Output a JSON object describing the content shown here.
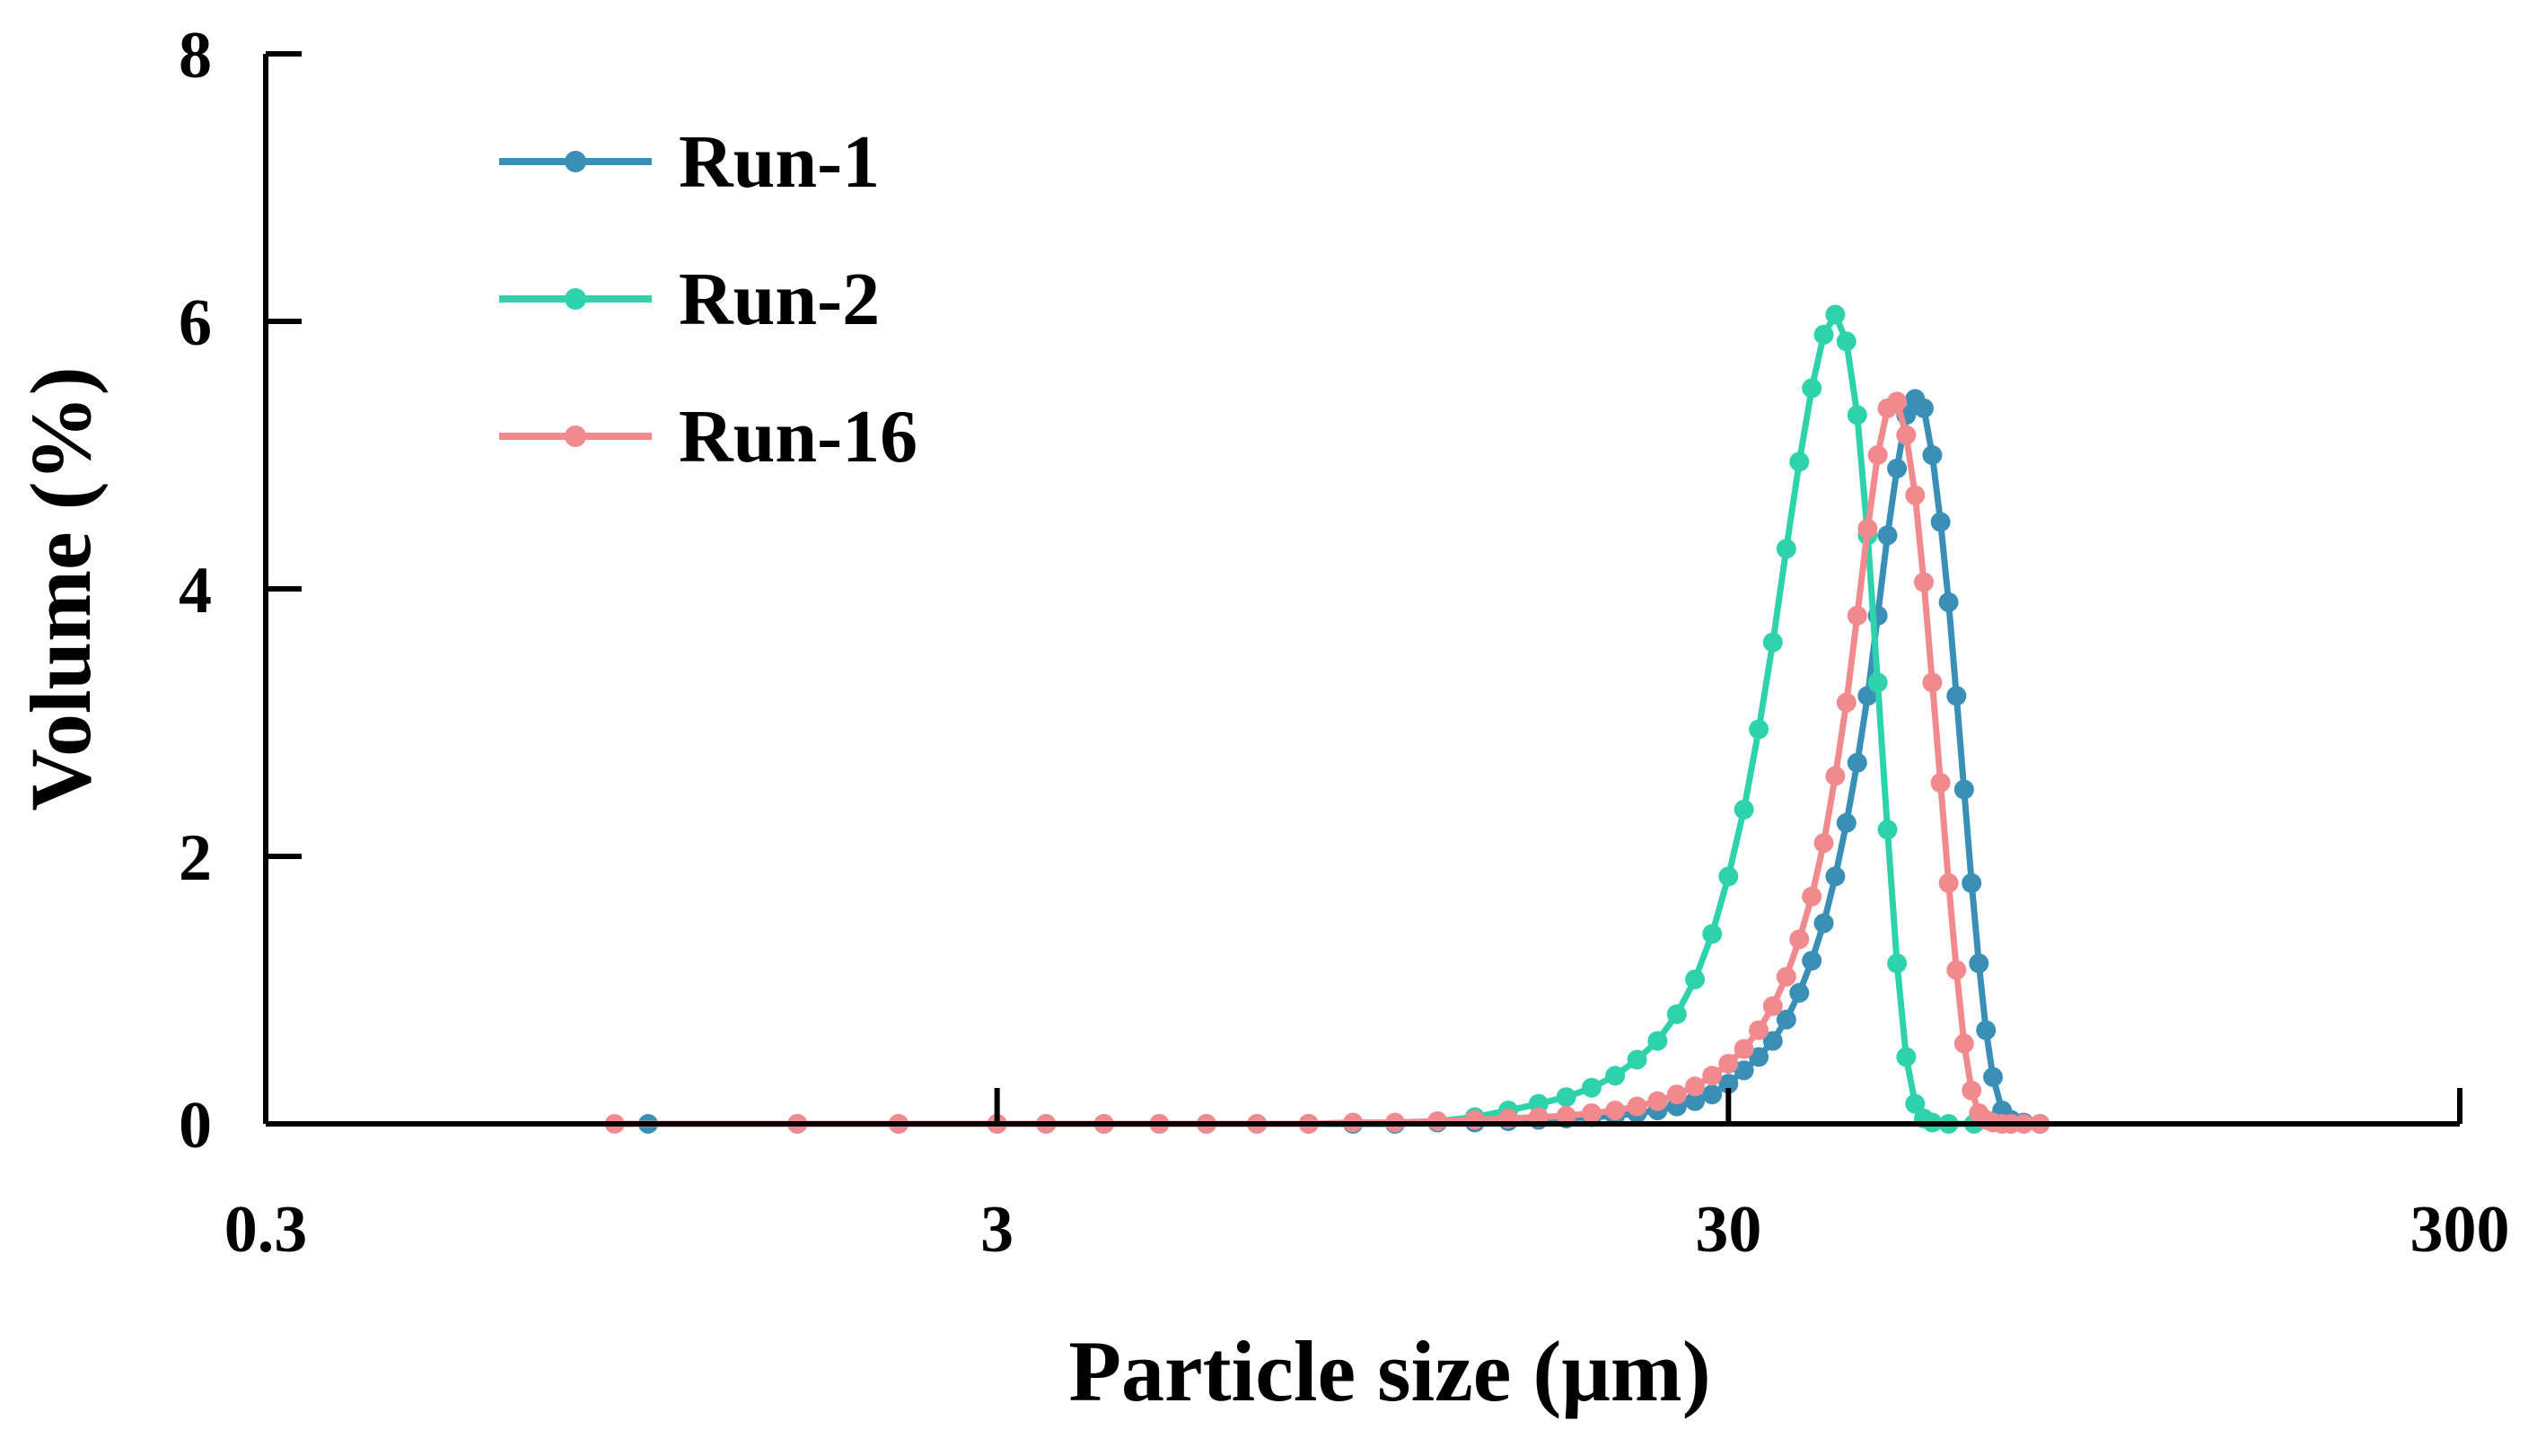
{
  "chart_data": {
    "type": "line",
    "title": "",
    "xlabel": "Particle size (μm)",
    "ylabel": "Volume (%)",
    "x_scale": "log",
    "xlim": [
      0.3,
      300
    ],
    "ylim": [
      0,
      8
    ],
    "x_ticks": [
      "0.3",
      "3",
      "30",
      "300"
    ],
    "x_tick_values": [
      0.3,
      3,
      30,
      300
    ],
    "y_ticks": [
      "0",
      "2",
      "4",
      "6",
      "8"
    ],
    "y_tick_values": [
      0,
      2,
      4,
      6,
      8
    ],
    "grid": false,
    "legend_position": "top-left",
    "series": [
      {
        "name": "Run-1",
        "color": "#3a8fb7",
        "x": [
          1.0,
          1.6,
          2.2,
          3.0,
          3.5,
          4.2,
          5.0,
          5.8,
          6.8,
          8.0,
          9.2,
          10.5,
          12.0,
          13.5,
          15.0,
          16.5,
          18.0,
          19.5,
          21.0,
          22.5,
          24.0,
          25.5,
          27.0,
          28.5,
          30.0,
          31.5,
          33.0,
          34.5,
          36.0,
          37.5,
          39.0,
          40.5,
          42.0,
          43.5,
          45.0,
          46.5,
          48.0,
          49.5,
          51.0,
          52.5,
          54.0,
          55.5,
          57.0,
          58.5,
          60.0,
          61.5,
          63.0,
          64.5,
          66.0,
          67.5,
          69.0,
          71.0,
          73.0,
          76.0,
          80.0
        ],
        "values": [
          0,
          0,
          0,
          0,
          0,
          0,
          0,
          0,
          0,
          0,
          0,
          0,
          0.01,
          0.01,
          0.02,
          0.03,
          0.04,
          0.05,
          0.06,
          0.08,
          0.1,
          0.13,
          0.17,
          0.22,
          0.3,
          0.4,
          0.5,
          0.62,
          0.78,
          0.98,
          1.22,
          1.5,
          1.85,
          2.25,
          2.7,
          3.2,
          3.8,
          4.4,
          4.9,
          5.3,
          5.42,
          5.35,
          5.0,
          4.5,
          3.9,
          3.2,
          2.5,
          1.8,
          1.2,
          0.7,
          0.35,
          0.1,
          0.03,
          0.01,
          0
        ]
      },
      {
        "name": "Run-2",
        "color": "#2ed3ab",
        "x": [
          12.0,
          13.5,
          15.0,
          16.5,
          18.0,
          19.5,
          21.0,
          22.5,
          24.0,
          25.5,
          27.0,
          28.5,
          30.0,
          31.5,
          33.0,
          34.5,
          36.0,
          37.5,
          39.0,
          40.5,
          42.0,
          43.5,
          45.0,
          46.5,
          48.0,
          49.5,
          51.0,
          52.5,
          54.0,
          55.5,
          57.0,
          60.0,
          65.0
        ],
        "values": [
          0.02,
          0.05,
          0.1,
          0.15,
          0.2,
          0.27,
          0.36,
          0.48,
          0.62,
          0.82,
          1.08,
          1.42,
          1.85,
          2.35,
          2.95,
          3.6,
          4.3,
          4.95,
          5.5,
          5.9,
          6.05,
          5.85,
          5.3,
          4.4,
          3.3,
          2.2,
          1.2,
          0.5,
          0.15,
          0.04,
          0.01,
          0,
          0
        ]
      },
      {
        "name": "Run-16",
        "color": "#f08a8e",
        "x": [
          0.9,
          1.6,
          2.2,
          3.0,
          3.5,
          4.2,
          5.0,
          5.8,
          6.8,
          8.0,
          9.2,
          10.5,
          12.0,
          13.5,
          15.0,
          16.5,
          18.0,
          19.5,
          21.0,
          22.5,
          24.0,
          25.5,
          27.0,
          28.5,
          30.0,
          31.5,
          33.0,
          34.5,
          36.0,
          37.5,
          39.0,
          40.5,
          42.0,
          43.5,
          45.0,
          46.5,
          48.0,
          49.5,
          51.0,
          52.5,
          54.0,
          55.5,
          57.0,
          58.5,
          60.0,
          61.5,
          63.0,
          64.5,
          66.0,
          67.5,
          69.0,
          71.0,
          73.0,
          76.0,
          80.0
        ],
        "values": [
          0,
          0,
          0,
          0,
          0,
          0,
          0,
          0,
          0,
          0,
          0.01,
          0.01,
          0.02,
          0.03,
          0.04,
          0.05,
          0.06,
          0.08,
          0.1,
          0.13,
          0.17,
          0.22,
          0.28,
          0.36,
          0.45,
          0.56,
          0.7,
          0.88,
          1.1,
          1.38,
          1.7,
          2.1,
          2.6,
          3.15,
          3.8,
          4.45,
          5.0,
          5.35,
          5.4,
          5.15,
          4.7,
          4.05,
          3.3,
          2.55,
          1.8,
          1.15,
          0.6,
          0.25,
          0.08,
          0.03,
          0.01,
          0,
          0,
          0,
          0
        ]
      }
    ]
  }
}
